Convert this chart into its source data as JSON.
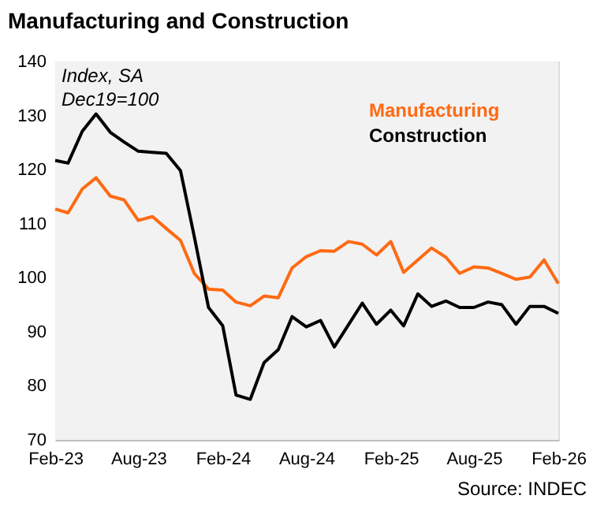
{
  "chart_data": {
    "type": "line",
    "title": "Manufacturing and Construction",
    "x": [
      "2023-02",
      "2023-03",
      "2023-04",
      "2023-05",
      "2023-06",
      "2023-07",
      "2023-08",
      "2023-09",
      "2023-10",
      "2023-11",
      "2023-12",
      "2024-01",
      "2024-02",
      "2024-03",
      "2024-04",
      "2024-05",
      "2024-06",
      "2024-07",
      "2024-08",
      "2024-09",
      "2024-10",
      "2024-11",
      "2024-12",
      "2025-01",
      "2025-02",
      "2025-03",
      "2025-04",
      "2025-05",
      "2025-06",
      "2025-07",
      "2025-08",
      "2025-09",
      "2025-10",
      "2025-11",
      "2025-12",
      "2026-01",
      "2026-02"
    ],
    "series": [
      {
        "name": "Manufacturing",
        "color": "#ff6a13",
        "values": [
          112.7,
          112.0,
          116.4,
          118.5,
          115.1,
          114.4,
          110.6,
          111.3,
          109.1,
          106.9,
          100.8,
          97.9,
          97.7,
          95.5,
          94.8,
          96.6,
          96.3,
          101.8,
          103.9,
          105.0,
          104.9,
          106.7,
          106.2,
          104.2,
          106.7,
          101.0,
          103.3,
          105.5,
          103.8,
          100.8,
          102.0,
          101.8,
          100.8,
          99.7,
          100.1,
          103.3,
          98.9
        ]
      },
      {
        "name": "Construction",
        "color": "#000000",
        "values": [
          121.7,
          121.2,
          127.1,
          130.3,
          126.9,
          125.1,
          123.4,
          123.2,
          123.0,
          119.8,
          107.6,
          94.5,
          91.1,
          78.3,
          77.5,
          84.3,
          86.7,
          92.8,
          90.9,
          92.1,
          87.2,
          91.3,
          95.3,
          91.4,
          94.0,
          91.1,
          97.0,
          94.7,
          95.7,
          94.5,
          94.5,
          95.5,
          95.0,
          91.4,
          94.7,
          94.7,
          93.4
        ]
      }
    ],
    "xlim": [
      "2023-02",
      "2026-02"
    ],
    "xticks": [
      {
        "value": "2023-02",
        "label": "Feb-23"
      },
      {
        "value": "2023-08",
        "label": "Aug-23"
      },
      {
        "value": "2024-02",
        "label": "Feb-24"
      },
      {
        "value": "2024-08",
        "label": "Aug-24"
      },
      {
        "value": "2025-02",
        "label": "Feb-25"
      },
      {
        "value": "2025-08",
        "label": "Aug-25"
      },
      {
        "value": "2026-02",
        "label": "Feb-26"
      }
    ],
    "ylim": [
      70,
      140
    ],
    "yticks": [
      70,
      80,
      90,
      100,
      110,
      120,
      130,
      140
    ],
    "annotations": [
      "Index, SA\nDec19=100",
      "Source: INDEC"
    ],
    "legend": "top right",
    "marker": "none",
    "line_style": "solid"
  }
}
